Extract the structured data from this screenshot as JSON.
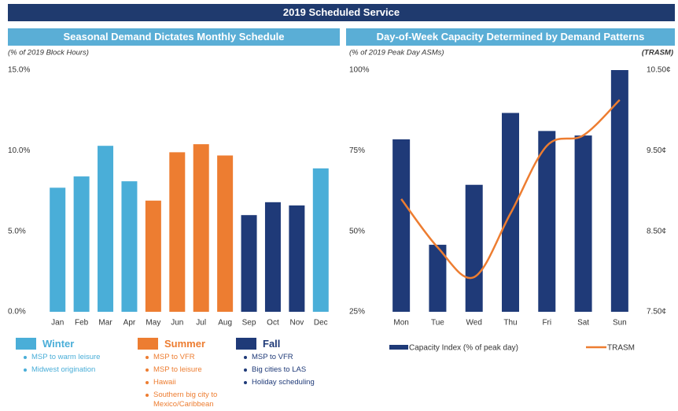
{
  "header": {
    "title": "2019 Scheduled Service"
  },
  "chart_data": [
    {
      "type": "bar",
      "title": "Seasonal Demand Dictates Monthly Schedule",
      "y_label": "(% of 2019 Block Hours)",
      "categories": [
        "Jan",
        "Feb",
        "Mar",
        "Apr",
        "May",
        "Jun",
        "Jul",
        "Aug",
        "Sep",
        "Oct",
        "Nov",
        "Dec"
      ],
      "values": [
        7.7,
        8.4,
        10.3,
        8.1,
        6.9,
        9.9,
        10.4,
        9.7,
        6.0,
        6.8,
        6.6,
        8.9
      ],
      "colors": [
        "#4aaed8",
        "#4aaed8",
        "#4aaed8",
        "#4aaed8",
        "#ed7d31",
        "#ed7d31",
        "#ed7d31",
        "#ed7d31",
        "#1f3a78",
        "#1f3a78",
        "#1f3a78",
        "#4aaed8"
      ],
      "ylim": [
        0,
        15
      ],
      "yticks": [
        {
          "value": 0,
          "label": "0.0%"
        },
        {
          "value": 5,
          "label": "5.0%"
        },
        {
          "value": 10,
          "label": "10.0%"
        },
        {
          "value": 15,
          "label": "15.0%"
        }
      ],
      "grid": false,
      "legend": [
        {
          "name": "Winter",
          "color": "#4aaed8",
          "items": [
            "MSP to warm leisure",
            "Midwest origination"
          ]
        },
        {
          "name": "Summer",
          "color": "#ed7d31",
          "items": [
            "MSP to VFR",
            "MSP to leisure",
            "Hawaii",
            "Southern big city to Mexico/Caribbean"
          ]
        },
        {
          "name": "Fall",
          "color": "#1f3a78",
          "items": [
            "MSP to VFR",
            "Big cities to LAS",
            "Holiday scheduling"
          ]
        }
      ]
    },
    {
      "type": "combo",
      "title": "Day-of-Week Capacity Determined by Demand Patterns",
      "y_label": "(% of 2019 Peak Day ASMs)",
      "y2_label": "(TRASM)",
      "categories": [
        "Mon",
        "Tue",
        "Wed",
        "Thu",
        "Fri",
        "Sat",
        "Sun"
      ],
      "series": [
        {
          "name": "Capacity Index (% of peak day)",
          "type": "bar",
          "color": "#1f3a78",
          "values": [
            78.5,
            45.8,
            64.4,
            86.7,
            81.1,
            79.7,
            100
          ]
        },
        {
          "name": "TRASM",
          "type": "line",
          "axis": "y2",
          "color": "#ed7d31",
          "values": [
            8.9,
            8.3,
            7.93,
            8.72,
            9.56,
            9.69,
            10.13
          ]
        }
      ],
      "ylim": [
        25,
        100
      ],
      "yticks": [
        {
          "value": 25,
          "label": "25%"
        },
        {
          "value": 50,
          "label": "50%"
        },
        {
          "value": 75,
          "label": "75%"
        },
        {
          "value": 100,
          "label": "100%"
        }
      ],
      "y2lim": [
        7.5,
        10.5
      ],
      "y2ticks": [
        {
          "value": 7.5,
          "label": "7.50¢"
        },
        {
          "value": 8.5,
          "label": "8.50¢"
        },
        {
          "value": 9.5,
          "label": "9.50¢"
        },
        {
          "value": 10.5,
          "label": "10.50¢"
        }
      ],
      "grid": false,
      "legend_position": "bottom"
    }
  ]
}
